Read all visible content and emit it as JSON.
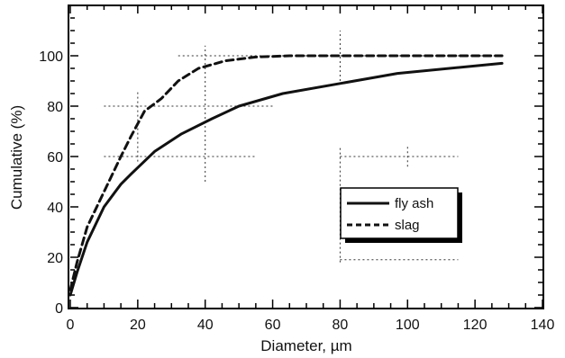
{
  "chart_data": {
    "type": "line",
    "title": "",
    "xlabel": "Diameter, µm",
    "ylabel": "Cumulative (%)",
    "xlim": [
      0,
      140
    ],
    "ylim": [
      0,
      120
    ],
    "xticks": [
      "0",
      "20",
      "40",
      "60",
      "80",
      "100",
      "120",
      "140"
    ],
    "yticks": [
      "0",
      "20",
      "40",
      "60",
      "80",
      "100"
    ],
    "legend_position": "center-right",
    "series": [
      {
        "name": "fly ash",
        "style": "solid",
        "x": [
          0,
          2,
          5,
          10,
          15,
          18,
          25,
          33,
          42,
          50,
          63,
          80,
          97,
          128
        ],
        "y": [
          5,
          14,
          26,
          40,
          49,
          53,
          62,
          69,
          75,
          80,
          85,
          89,
          93,
          97
        ]
      },
      {
        "name": "slag",
        "style": "dashed",
        "x": [
          0,
          2,
          5,
          10,
          15,
          18,
          22,
          27,
          32,
          38,
          46,
          55,
          65,
          80,
          100,
          128
        ],
        "y": [
          7,
          18,
          32,
          46,
          60,
          68,
          78,
          83,
          90,
          95,
          98,
          99.5,
          100,
          100,
          100,
          100
        ]
      }
    ]
  },
  "colors": {
    "line": "#111111",
    "axis": "#000000",
    "guide": "#333333"
  }
}
